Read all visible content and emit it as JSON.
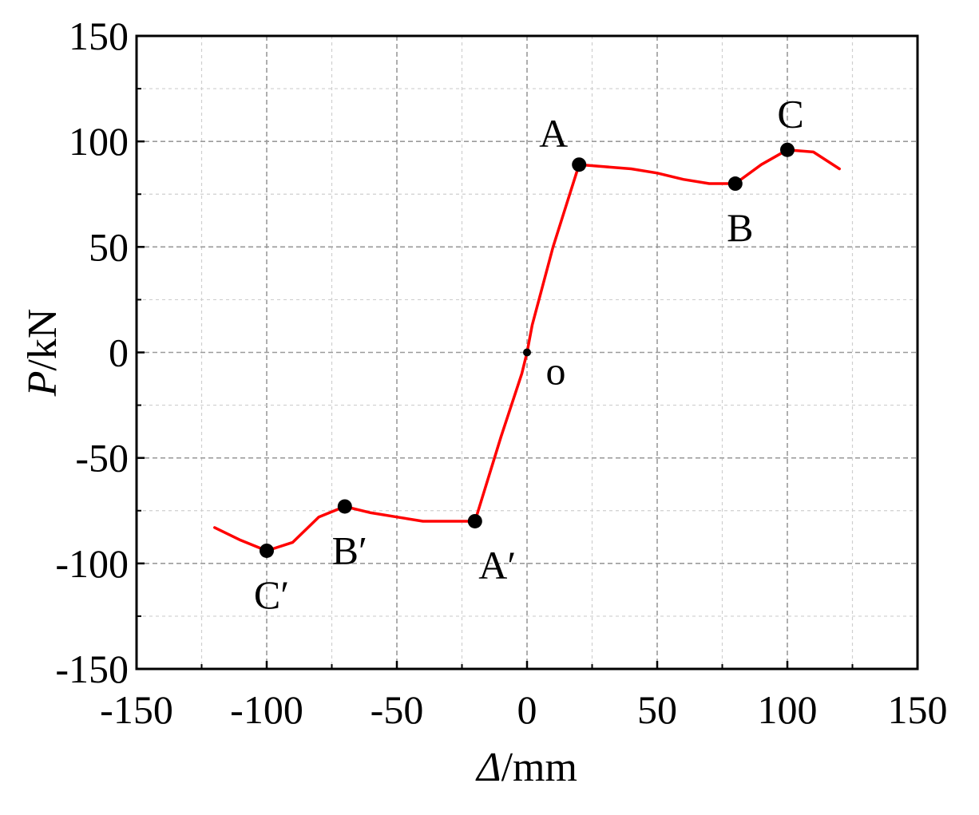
{
  "chart_data": {
    "type": "line",
    "xlabel": {
      "symbol": "Δ",
      "unit": "/mm"
    },
    "ylabel": {
      "symbol": "P",
      "unit": "/kN"
    },
    "xlim": [
      -150,
      150
    ],
    "ylim": [
      -150,
      150
    ],
    "xticks": [
      -150,
      -100,
      -50,
      0,
      50,
      100,
      150
    ],
    "yticks": [
      -150,
      -100,
      -50,
      0,
      50,
      100,
      150
    ],
    "xtick_labels": [
      "-150",
      "-100",
      "-50",
      "0",
      "50",
      "100",
      "150"
    ],
    "ytick_labels": [
      "-150",
      "-100",
      "-50",
      "0",
      "50",
      "100",
      "150"
    ],
    "grid": true,
    "line_color": "#ff0000",
    "marker_color": "#000000",
    "series": [
      {
        "x": [
          -120,
          -110,
          -100,
          -90,
          -80,
          -70,
          -60,
          -50,
          -40,
          -30,
          -20,
          -10,
          -2,
          0,
          2,
          10,
          20,
          30,
          40,
          50,
          60,
          70,
          80,
          90,
          100,
          110,
          120
        ],
        "y": [
          -83,
          -89,
          -94,
          -90,
          -78,
          -73,
          -76,
          -78,
          -80,
          -80,
          -80,
          -40,
          -10,
          0,
          13,
          50,
          89,
          88,
          87,
          85,
          82,
          80,
          80,
          89,
          96,
          95,
          87
        ]
      }
    ],
    "points": [
      {
        "label": "A",
        "x": 20,
        "y": 89,
        "pos": "above-left"
      },
      {
        "label": "B",
        "x": 80,
        "y": 80,
        "pos": "below"
      },
      {
        "label": "C",
        "x": 100,
        "y": 96,
        "pos": "above"
      },
      {
        "label": "A′",
        "x": -20,
        "y": -80,
        "pos": "below-right"
      },
      {
        "label": "B′",
        "x": -70,
        "y": -73,
        "pos": "below"
      },
      {
        "label": "C′",
        "x": -100,
        "y": -94,
        "pos": "below"
      }
    ],
    "origin": {
      "label": "o",
      "x": 0,
      "y": 0
    }
  }
}
